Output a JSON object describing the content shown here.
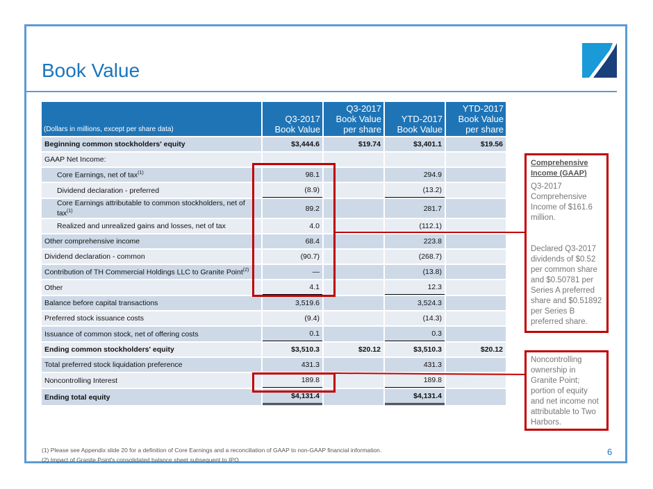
{
  "title": "Book Value",
  "page_number": "6",
  "table": {
    "header": [
      "(Dollars in millions, except per share data)",
      "Q3-2017 Book Value",
      "Q3-2017 Book Value per share",
      "YTD-2017 Book Value",
      "YTD-2017 Book Value per share"
    ],
    "rows": [
      {
        "label": "Beginning common stockholders' equity",
        "v": [
          "$3,444.6",
          "$19.74",
          "$3,401.1",
          "$19.56"
        ]
      },
      {
        "label": "GAAP Net Income:",
        "v": [
          "",
          "",
          "",
          ""
        ]
      },
      {
        "label": "Core Earnings, net of tax",
        "sup": "(1)",
        "v": [
          "98.1",
          "",
          "294.9",
          ""
        ]
      },
      {
        "label": "Dividend declaration - preferred",
        "v": [
          "(8.9)",
          "",
          "(13.2)",
          ""
        ]
      },
      {
        "label": "Core Earnings attributable to common stockholders, net of tax",
        "sup": "(1)",
        "v": [
          "89.2",
          "",
          "281.7",
          ""
        ]
      },
      {
        "label": "Realized and unrealized gains and losses, net of tax",
        "v": [
          "4.0",
          "",
          "(112.1)",
          ""
        ]
      },
      {
        "label": "Other comprehensive income",
        "v": [
          "68.4",
          "",
          "223.8",
          ""
        ]
      },
      {
        "label": "Dividend declaration - common",
        "v": [
          "(90.7)",
          "",
          "(268.7)",
          ""
        ]
      },
      {
        "label": "Contribution of TH Commercial Holdings LLC to Granite Point",
        "sup": "(2)",
        "v": [
          "—",
          "",
          "(13.8)",
          ""
        ]
      },
      {
        "label": "Other",
        "v": [
          "4.1",
          "",
          "12.3",
          ""
        ]
      },
      {
        "label": "Balance before capital transactions",
        "v": [
          "3,519.6",
          "",
          "3,524.3",
          ""
        ]
      },
      {
        "label": "Preferred stock issuance costs",
        "v": [
          "(9.4)",
          "",
          "(14.3)",
          ""
        ]
      },
      {
        "label": "Issuance of common stock, net of offering costs",
        "v": [
          "0.1",
          "",
          "0.3",
          ""
        ]
      },
      {
        "label": "Ending common stockholders' equity",
        "v": [
          "$3,510.3",
          "$20.12",
          "$3,510.3",
          "$20.12"
        ]
      },
      {
        "label": "Total preferred stock liquidation preference",
        "v": [
          "431.3",
          "",
          "431.3",
          ""
        ]
      },
      {
        "label": "Noncontrolling Interest",
        "v": [
          "189.8",
          "",
          "189.8",
          ""
        ]
      },
      {
        "label": "Ending total equity",
        "v": [
          "$4,131.4",
          "",
          "$4,131.4",
          ""
        ]
      }
    ]
  },
  "callouts": {
    "comprehensive": {
      "heading": "Comprehensive Income (GAAP)",
      "p1": "Q3-2017 Comprehensive Income of $161.6 million.",
      "p2": "Declared Q3-2017 dividends of $0.52 per common share and $0.50781 per Series A preferred share and $0.51892 per Series B preferred share."
    },
    "noncontrolling": {
      "text": "Noncontrolling ownership in Granite Point; portion of equity and net income not attributable to Two Harbors."
    }
  },
  "footnotes": [
    "(1)   Please see Appendix slide 20 for a definition of Core Earnings and a reconciliation of GAAP to non-GAAP financial information.",
    "(2)   Impact of Granite Point's consolidated balance sheet subsequent to IPO."
  ],
  "colors": {
    "brand": "#1b75bc",
    "header": "#1f74b6",
    "highlight": "#c00000"
  }
}
